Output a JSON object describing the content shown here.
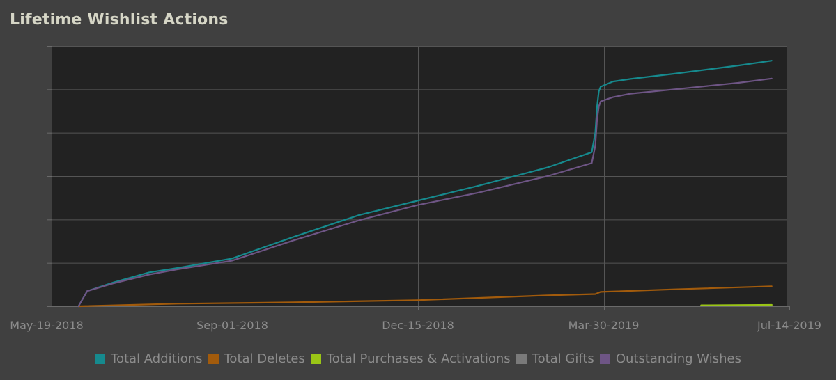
{
  "chart_data": {
    "type": "line",
    "title": "Lifetime Wishlist Actions",
    "xlabel": "",
    "ylabel": "",
    "grid": true,
    "legend_position": "bottom",
    "x_ticks": [
      "May-19-2018",
      "Sep-01-2018",
      "Dec-15-2018",
      "Mar-30-2019",
      "Jul-14-2019"
    ],
    "x_range": [
      "2018-05-19",
      "2019-07-14"
    ],
    "y_range": [
      0,
      6
    ],
    "y_units": "gridline units (no numeric y-axis labels shown)",
    "series": [
      {
        "name": "Total Additions",
        "color": "#168a8e",
        "x": [
          "2018-06-06",
          "2018-06-11",
          "2018-06-26",
          "2018-07-16",
          "2018-08-01",
          "2018-09-01",
          "2018-10-06",
          "2018-11-12",
          "2018-12-15",
          "2019-01-19",
          "2019-02-27",
          "2019-03-24",
          "2019-03-26",
          "2019-03-27",
          "2019-03-28",
          "2019-03-29",
          "2019-04-05",
          "2019-04-15",
          "2019-05-10",
          "2019-06-15",
          "2019-07-04"
        ],
        "y": [
          0.0,
          0.35,
          0.55,
          0.78,
          0.88,
          1.1,
          1.6,
          2.1,
          2.43,
          2.78,
          3.2,
          3.55,
          4.0,
          4.6,
          4.95,
          5.06,
          5.18,
          5.24,
          5.36,
          5.55,
          5.66
        ]
      },
      {
        "name": "Total Deletes",
        "color": "#a25b0c",
        "x": [
          "2018-06-06",
          "2018-08-01",
          "2018-10-06",
          "2018-12-15",
          "2019-02-27",
          "2019-03-26",
          "2019-03-29",
          "2019-05-10",
          "2019-07-04"
        ],
        "y": [
          0.0,
          0.06,
          0.09,
          0.14,
          0.25,
          0.28,
          0.33,
          0.39,
          0.46
        ]
      },
      {
        "name": "Total Purchases & Activations",
        "color": "#9ac516",
        "x": [
          "2019-05-25",
          "2019-07-04"
        ],
        "y": [
          0.02,
          0.03
        ]
      },
      {
        "name": "Total Gifts",
        "color": "#7a7a7a",
        "x": [],
        "y": []
      },
      {
        "name": "Outstanding Wishes",
        "color": "#6e5585",
        "x": [
          "2018-06-06",
          "2018-06-11",
          "2018-06-26",
          "2018-07-16",
          "2018-08-01",
          "2018-09-01",
          "2018-10-06",
          "2018-11-12",
          "2018-12-15",
          "2019-01-19",
          "2019-02-27",
          "2019-03-24",
          "2019-03-26",
          "2019-03-27",
          "2019-03-28",
          "2019-03-29",
          "2019-04-05",
          "2019-04-15",
          "2019-05-10",
          "2019-06-15",
          "2019-07-04"
        ],
        "y": [
          0.0,
          0.35,
          0.53,
          0.73,
          0.85,
          1.05,
          1.52,
          1.98,
          2.33,
          2.62,
          3.0,
          3.3,
          3.7,
          4.3,
          4.6,
          4.72,
          4.82,
          4.9,
          5.0,
          5.15,
          5.25
        ]
      }
    ]
  }
}
